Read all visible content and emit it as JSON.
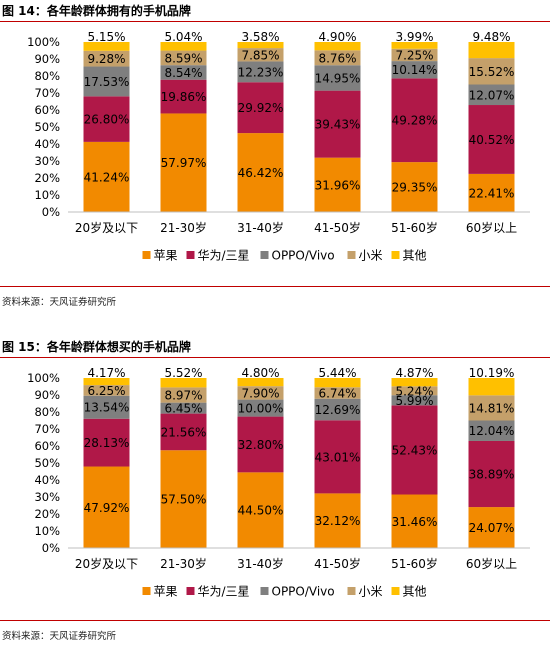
{
  "figures": [
    {
      "title": "图 14：各年龄群体拥有的手机品牌",
      "source": "资料来源：天风证券研究所",
      "chart_data": {
        "type": "bar",
        "stacked": true,
        "categories": [
          "20岁及以下",
          "21-30岁",
          "31-40岁",
          "41-50岁",
          "51-60岁",
          "60岁以上"
        ],
        "y_ticks": [
          "0%",
          "10%",
          "20%",
          "30%",
          "40%",
          "50%",
          "60%",
          "70%",
          "80%",
          "90%",
          "100%"
        ],
        "ylim": [
          0,
          100
        ],
        "legend_position": "bottom",
        "series": [
          {
            "name": "苹果",
            "color": "#f28a00",
            "values": [
              41.24,
              57.97,
              46.42,
              31.96,
              29.35,
              22.41
            ],
            "labels": [
              "41.24%",
              "57.97%",
              "46.42%",
              "31.96%",
              "29.35%",
              "22.41%"
            ]
          },
          {
            "name": "华为/三星",
            "color": "#b01848",
            "values": [
              26.8,
              19.86,
              29.92,
              39.43,
              49.28,
              40.52
            ],
            "labels": [
              "26.80%",
              "19.86%",
              "29.92%",
              "39.43%",
              "49.28%",
              "40.52%"
            ]
          },
          {
            "name": "OPPO/Vivo",
            "color": "#7f7f7f",
            "values": [
              17.53,
              8.54,
              12.23,
              14.95,
              10.14,
              12.07
            ],
            "labels": [
              "17.53%",
              "8.54%",
              "12.23%",
              "14.95%",
              "10.14%",
              "12.07%"
            ]
          },
          {
            "name": "小米",
            "color": "#c4a06a",
            "values": [
              9.28,
              8.59,
              7.85,
              8.76,
              7.25,
              15.52
            ],
            "labels": [
              "9.28%",
              "8.59%",
              "7.85%",
              "8.76%",
              "7.25%",
              "15.52%"
            ]
          },
          {
            "name": "其他",
            "color": "#ffc000",
            "values": [
              5.15,
              5.04,
              3.58,
              4.9,
              3.99,
              9.48
            ],
            "labels": [
              "5.15%",
              "5.04%",
              "3.58%",
              "4.90%",
              "3.99%",
              "9.48%"
            ]
          }
        ]
      }
    },
    {
      "title": "图 15：各年龄群体想买的手机品牌",
      "source": "资料来源：天风证券研究所",
      "chart_data": {
        "type": "bar",
        "stacked": true,
        "categories": [
          "20岁及以下",
          "21-30岁",
          "31-40岁",
          "41-50岁",
          "51-60岁",
          "60岁以上"
        ],
        "y_ticks": [
          "0%",
          "10%",
          "20%",
          "30%",
          "40%",
          "50%",
          "60%",
          "70%",
          "80%",
          "90%",
          "100%"
        ],
        "ylim": [
          0,
          100
        ],
        "legend_position": "bottom",
        "series": [
          {
            "name": "苹果",
            "color": "#f28a00",
            "values": [
              47.92,
              57.5,
              44.5,
              32.12,
              31.46,
              24.07
            ],
            "labels": [
              "47.92%",
              "57.50%",
              "44.50%",
              "32.12%",
              "31.46%",
              "24.07%"
            ]
          },
          {
            "name": "华为/三星",
            "color": "#b01848",
            "values": [
              28.13,
              21.56,
              32.8,
              43.01,
              52.43,
              38.89
            ],
            "labels": [
              "28.13%",
              "21.56%",
              "32.80%",
              "43.01%",
              "52.43%",
              "38.89%"
            ]
          },
          {
            "name": "OPPO/Vivo",
            "color": "#7f7f7f",
            "values": [
              13.54,
              6.45,
              10.0,
              12.69,
              5.99,
              12.04
            ],
            "labels": [
              "13.54%",
              "6.45%",
              "10.00%",
              "12.69%",
              "5.99%",
              "12.04%"
            ]
          },
          {
            "name": "小米",
            "color": "#c4a06a",
            "values": [
              6.25,
              8.97,
              7.9,
              6.74,
              5.24,
              14.81
            ],
            "labels": [
              "6.25%",
              "8.97%",
              "7.90%",
              "6.74%",
              "5.24%",
              "14.81%"
            ]
          },
          {
            "name": "其他",
            "color": "#ffc000",
            "values": [
              4.17,
              5.52,
              4.8,
              5.44,
              4.87,
              10.19
            ],
            "labels": [
              "4.17%",
              "5.52%",
              "4.80%",
              "5.44%",
              "4.87%",
              "10.19%"
            ]
          }
        ]
      }
    }
  ]
}
